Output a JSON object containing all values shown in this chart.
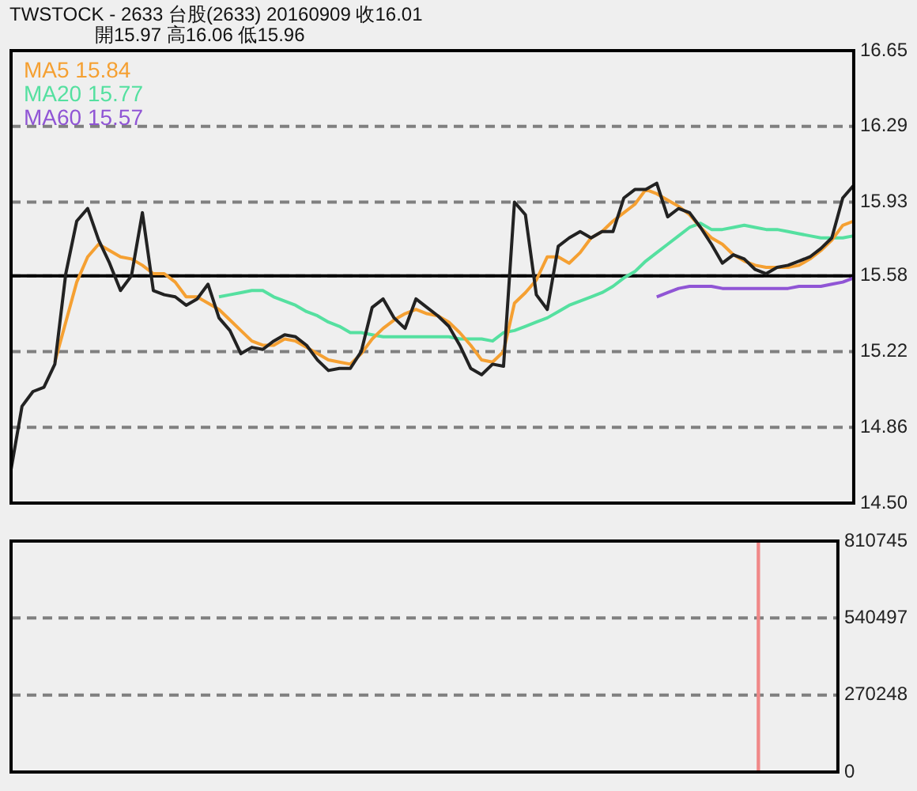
{
  "chart_data": [
    {
      "type": "line",
      "title": "TWSTOCK - 2633 台股(2633) 20160909 收16.01",
      "subtitle": "開15.97 高16.06 低15.96",
      "categories": [
        null,
        null,
        null,
        null,
        null,
        null,
        null,
        null,
        null,
        null,
        null,
        null,
        null,
        null,
        null,
        null,
        null,
        null,
        null,
        null,
        null,
        null,
        null,
        null,
        null,
        null,
        null,
        null,
        null,
        null,
        null,
        null,
        null,
        null,
        null,
        null,
        null,
        null,
        null,
        null,
        null,
        null,
        null,
        null,
        null,
        null,
        null,
        null,
        null,
        null,
        null,
        null,
        null,
        null,
        null,
        null,
        null,
        null,
        null,
        null,
        null,
        null,
        null,
        null,
        null,
        null,
        null,
        null,
        null,
        null,
        null,
        null,
        null,
        null,
        null,
        null,
        null,
        null
      ],
      "series": [
        {
          "color": "#222222",
          "values": [
            14.66,
            14.96,
            15.03,
            15.05,
            15.16,
            15.59,
            15.84,
            15.9,
            15.75,
            15.64,
            15.51,
            15.58,
            15.88,
            15.51,
            15.49,
            15.48,
            15.44,
            15.47,
            15.54,
            15.38,
            15.32,
            15.21,
            15.24,
            15.23,
            15.27,
            15.3,
            15.29,
            15.25,
            15.18,
            15.13,
            15.14,
            15.14,
            15.22,
            15.43,
            15.47,
            15.38,
            15.33,
            15.47,
            15.43,
            15.39,
            15.34,
            15.25,
            15.14,
            15.11,
            15.16,
            15.15,
            15.93,
            15.87,
            15.49,
            15.42,
            15.72,
            15.76,
            15.79,
            15.76,
            15.79,
            15.79,
            15.95,
            15.99,
            15.99,
            16.02,
            15.86,
            15.9,
            15.88,
            15.81,
            15.73,
            15.64,
            15.68,
            15.66,
            15.61,
            15.59,
            15.62,
            15.63,
            15.65,
            15.67,
            15.71,
            15.76,
            15.95,
            16.01
          ]
        },
        {
          "name": "MA5 15.84",
          "color": "#f5a032",
          "values": [
            null,
            null,
            null,
            null,
            15.17,
            15.36,
            15.55,
            15.67,
            15.73,
            15.7,
            15.67,
            15.66,
            15.63,
            15.59,
            15.59,
            15.55,
            15.48,
            15.48,
            15.45,
            15.42,
            15.37,
            15.32,
            15.27,
            15.25,
            15.25,
            15.28,
            15.27,
            15.24,
            15.21,
            15.18,
            15.17,
            15.16,
            15.21,
            15.28,
            15.33,
            15.37,
            15.4,
            15.42,
            15.4,
            15.39,
            15.36,
            15.31,
            15.25,
            15.18,
            15.17,
            15.22,
            15.45,
            15.5,
            15.56,
            15.67,
            15.67,
            15.64,
            15.69,
            15.76,
            15.79,
            15.84,
            15.88,
            15.92,
            15.99,
            15.97,
            15.94,
            15.91,
            15.87,
            15.81,
            15.76,
            15.73,
            15.68,
            15.65,
            15.63,
            15.62,
            15.62,
            15.62,
            15.63,
            15.66,
            15.7,
            15.75,
            15.82,
            15.84
          ]
        },
        {
          "name": "MA20 15.77",
          "color": "#55e0a0",
          "values": [
            null,
            null,
            null,
            null,
            null,
            null,
            null,
            null,
            null,
            null,
            null,
            null,
            null,
            null,
            null,
            null,
            null,
            null,
            null,
            15.48,
            15.49,
            15.5,
            15.51,
            15.51,
            15.48,
            15.46,
            15.44,
            15.41,
            15.39,
            15.36,
            15.34,
            15.31,
            15.31,
            15.3,
            15.29,
            15.29,
            15.29,
            15.29,
            15.29,
            15.29,
            15.29,
            15.28,
            15.28,
            15.28,
            15.27,
            15.31,
            15.32,
            15.34,
            15.36,
            15.38,
            15.41,
            15.44,
            15.46,
            15.48,
            15.5,
            15.53,
            15.57,
            15.6,
            15.65,
            15.69,
            15.73,
            15.77,
            15.81,
            15.83,
            15.8,
            15.8,
            15.81,
            15.82,
            15.81,
            15.8,
            15.8,
            15.79,
            15.78,
            15.77,
            15.76,
            15.76,
            15.76,
            15.77
          ]
        },
        {
          "name": "MA60 15.57",
          "color": "#9055d5",
          "values": [
            null,
            null,
            null,
            null,
            null,
            null,
            null,
            null,
            null,
            null,
            null,
            null,
            null,
            null,
            null,
            null,
            null,
            null,
            null,
            null,
            null,
            null,
            null,
            null,
            null,
            null,
            null,
            null,
            null,
            null,
            null,
            null,
            null,
            null,
            null,
            null,
            null,
            null,
            null,
            null,
            null,
            null,
            null,
            null,
            null,
            null,
            null,
            null,
            null,
            null,
            null,
            null,
            null,
            null,
            null,
            null,
            null,
            null,
            null,
            15.48,
            15.5,
            15.52,
            15.53,
            15.53,
            15.53,
            15.52,
            15.52,
            15.52,
            15.52,
            15.52,
            15.52,
            15.52,
            15.53,
            15.53,
            15.53,
            15.54,
            15.55,
            15.57
          ]
        }
      ],
      "ylim": [
        14.5,
        16.65
      ],
      "yticks": [
        {
          "value": 14.5,
          "label": "14.50"
        },
        14.86,
        15.22,
        15.58,
        15.93,
        16.29,
        16.65
      ],
      "ref_lines": [
        {
          "axis": "y",
          "value": 15.58,
          "color": "#000000",
          "line_style": "solid"
        }
      ],
      "grid": "y",
      "legend": "top left",
      "tick_labels": "y"
    },
    {
      "type": "bar",
      "categories": [
        null,
        null,
        null,
        null,
        null,
        null,
        null,
        null,
        null,
        null,
        null,
        null,
        null,
        null,
        null,
        null,
        null,
        null,
        null,
        null,
        null,
        null,
        null,
        null,
        null,
        null,
        null,
        null,
        null,
        null,
        null,
        null,
        null,
        null,
        null,
        null,
        null,
        null,
        null,
        null,
        null,
        null,
        null,
        null,
        null,
        null,
        null,
        null,
        null,
        null,
        null,
        null,
        null,
        null,
        null,
        null,
        null,
        null,
        null,
        null,
        null,
        null,
        null,
        null,
        null,
        null,
        null,
        null,
        null,
        null,
        null,
        null,
        null,
        null,
        null,
        null,
        null,
        null
      ],
      "color": "#f08888",
      "values": [
        null,
        null,
        null,
        null,
        null,
        null,
        null,
        null,
        null,
        null,
        null,
        null,
        null,
        null,
        null,
        null,
        null,
        null,
        null,
        null,
        null,
        null,
        null,
        null,
        null,
        null,
        null,
        null,
        null,
        null,
        null,
        null,
        null,
        null,
        null,
        null,
        null,
        null,
        null,
        null,
        null,
        null,
        null,
        null,
        null,
        null,
        null,
        null,
        null,
        null,
        null,
        null,
        null,
        null,
        null,
        null,
        null,
        null,
        null,
        null,
        null,
        null,
        null,
        null,
        null,
        null,
        null,
        null,
        null,
        null,
        810745,
        null,
        null,
        null,
        null,
        null,
        null,
        null
      ],
      "ylim": [
        0,
        810745
      ],
      "yticks": [
        0,
        270248,
        540497,
        810745
      ],
      "grid": "y",
      "tick_labels": "y"
    }
  ]
}
